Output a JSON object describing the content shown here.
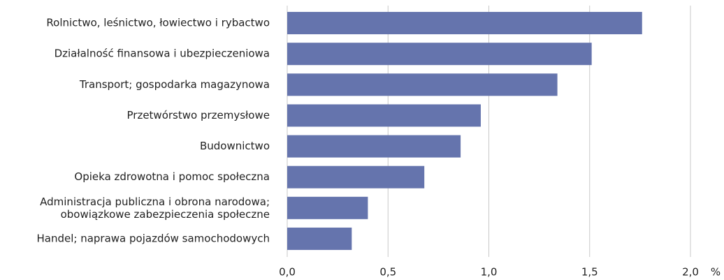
{
  "chart_data": {
    "type": "bar",
    "orientation": "horizontal",
    "categories": [
      "Rolnictwo, leśnictwo, łowiectwo i rybactwo",
      "Działalność finansowa i ubezpieczeniowa",
      "Transport; gospodarka magazynowa",
      "Przetwórstwo przemysłowe",
      "Budownictwo",
      "Opieka zdrowotna i pomoc społeczna",
      "Administracja publiczna i obrona narodowa;\nobowiązkowe zabezpieczenia społeczne",
      "Handel; naprawa pojazdów samochodowych"
    ],
    "values": [
      1.76,
      1.51,
      1.34,
      0.96,
      0.86,
      0.68,
      0.4,
      0.32
    ],
    "color": "#6574ad",
    "xlabel": "%",
    "xlim": [
      0,
      2.0
    ],
    "xticks": [
      {
        "value": 0,
        "label": "0,0"
      },
      {
        "value": 0.5,
        "label": "0,5"
      },
      {
        "value": 1.0,
        "label": "1,0"
      },
      {
        "value": 1.5,
        "label": "1,5"
      },
      {
        "value": 2.0,
        "label": "2,0"
      }
    ],
    "grid": true
  }
}
